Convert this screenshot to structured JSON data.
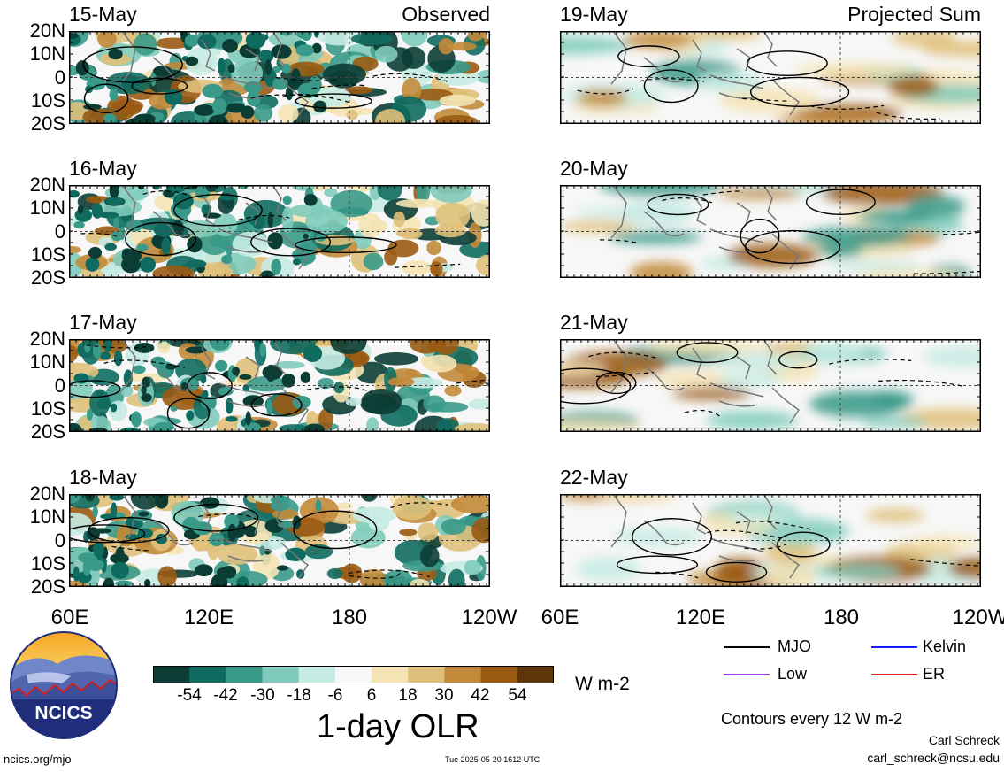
{
  "panels": {
    "left_tag": "Observed",
    "right_tag": "Projected Sum",
    "left_dates": [
      "15-May",
      "16-May",
      "17-May",
      "18-May"
    ],
    "right_dates": [
      "19-May",
      "20-May",
      "21-May",
      "22-May"
    ],
    "lat_labels": [
      "20N",
      "10N",
      "0",
      "10S",
      "20S"
    ],
    "lon_labels": [
      "60E",
      "120E",
      "180",
      "120W",
      "60E",
      "120E",
      "180",
      "120W"
    ]
  },
  "colorbar": {
    "labels": [
      "-54",
      "-42",
      "-30",
      "-18",
      "-6",
      "6",
      "18",
      "30",
      "42",
      "54"
    ],
    "colors": [
      "#0b3d35",
      "#0f6b5f",
      "#3a9a8a",
      "#7fcbbb",
      "#c6ebe3",
      "#f7f7f7",
      "#f4e3b4",
      "#dfc07a",
      "#c28a3a",
      "#9a5a12",
      "#5e3508"
    ],
    "units": "W m-2",
    "title": "1-day OLR"
  },
  "legend": {
    "mjo": "MJO",
    "kelvin": "Kelvin",
    "low": "Low",
    "er": "ER",
    "colors": {
      "mjo": "#000000",
      "kelvin": "#1a1aff",
      "low": "#a040e0",
      "er": "#e02020"
    },
    "contour_note": "Contours every 12 W m-2"
  },
  "credits": {
    "author": "Carl Schreck",
    "email": "carl_schreck@ncsu.edu",
    "url": "ncics.org/mjo",
    "timestamp": "Tue 2025-05-20 1612 UTC",
    "logo_text": "NCICS"
  }
}
